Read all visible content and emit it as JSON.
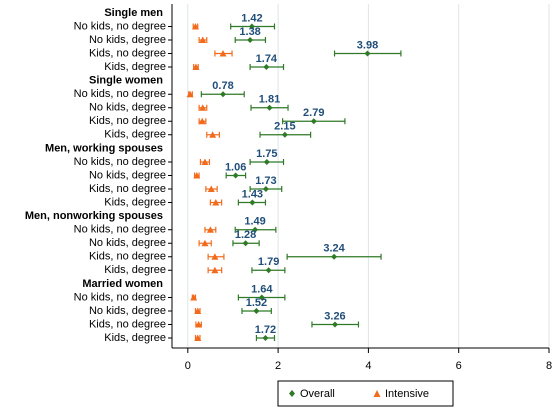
{
  "chart_data": {
    "type": "dotplot",
    "xlim": [
      -0.35,
      8
    ],
    "xticks": [
      0,
      2,
      4,
      6,
      8
    ],
    "grid": true,
    "legend": "bottom",
    "groups": [
      {
        "name": "Single men",
        "categories": [
          "No kids, no degree",
          "No kids, degree",
          "Kids, no degree",
          "Kids, degree"
        ]
      },
      {
        "name": "Single women",
        "categories": [
          "No kids, no degree",
          "No kids, degree",
          "Kids, no degree",
          "Kids, degree"
        ]
      },
      {
        "name": "Men, working spouses",
        "categories": [
          "No kids, no degree",
          "No kids, degree",
          "Kids, no degree",
          "Kids, degree"
        ]
      },
      {
        "name": "Men, nonworking spouses",
        "categories": [
          "No kids, no degree",
          "No kids, degree",
          "Kids, no degree",
          "Kids, degree"
        ]
      },
      {
        "name": "Married women",
        "categories": [
          "No kids, no degree",
          "No kids, degree",
          "Kids, no degree",
          "Kids, degree"
        ]
      }
    ],
    "series": [
      {
        "name": "Overall",
        "color": "#2f7a26",
        "marker": "diamond",
        "labels": true,
        "values": [
          [
            1.42,
            1.38,
            3.98,
            1.74
          ],
          [
            0.78,
            1.81,
            2.79,
            2.15
          ],
          [
            1.75,
            1.06,
            1.73,
            1.43
          ],
          [
            1.49,
            1.28,
            3.24,
            1.79
          ],
          [
            1.64,
            1.52,
            3.26,
            1.72
          ]
        ],
        "lower": [
          [
            0.95,
            1.05,
            3.25,
            1.38
          ],
          [
            0.3,
            1.4,
            2.1,
            1.6
          ],
          [
            1.38,
            0.85,
            1.38,
            1.12
          ],
          [
            1.05,
            1.0,
            2.2,
            1.42
          ],
          [
            1.12,
            1.2,
            2.75,
            1.52
          ]
        ],
        "upper": [
          [
            1.92,
            1.72,
            4.72,
            2.12
          ],
          [
            1.25,
            2.22,
            3.48,
            2.72
          ],
          [
            2.12,
            1.28,
            2.08,
            1.72
          ],
          [
            1.95,
            1.58,
            4.28,
            2.15
          ],
          [
            2.15,
            1.85,
            3.78,
            1.92
          ]
        ]
      },
      {
        "name": "Intensive",
        "color": "#f26b1d",
        "marker": "triangle",
        "labels": false,
        "values": [
          [
            0.17,
            0.33,
            0.78,
            0.18
          ],
          [
            0.05,
            0.33,
            0.32,
            0.55
          ],
          [
            0.38,
            0.2,
            0.52,
            0.62
          ],
          [
            0.5,
            0.38,
            0.6,
            0.6
          ],
          [
            0.13,
            0.22,
            0.24,
            0.22
          ]
        ],
        "lower": [
          [
            0.12,
            0.25,
            0.6,
            0.13
          ],
          [
            0.02,
            0.25,
            0.25,
            0.42
          ],
          [
            0.28,
            0.15,
            0.4,
            0.5
          ],
          [
            0.38,
            0.25,
            0.45,
            0.45
          ],
          [
            0.1,
            0.17,
            0.18,
            0.17
          ]
        ],
        "upper": [
          [
            0.22,
            0.42,
            0.98,
            0.23
          ],
          [
            0.1,
            0.42,
            0.4,
            0.7
          ],
          [
            0.48,
            0.25,
            0.65,
            0.75
          ],
          [
            0.62,
            0.52,
            0.8,
            0.75
          ],
          [
            0.17,
            0.27,
            0.3,
            0.27
          ]
        ]
      }
    ]
  }
}
